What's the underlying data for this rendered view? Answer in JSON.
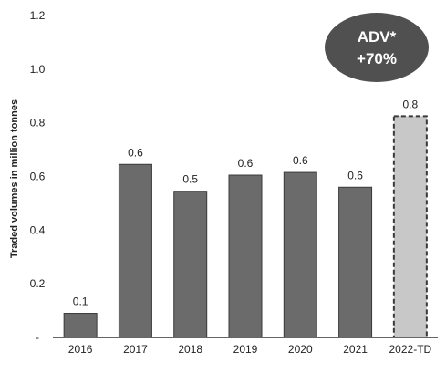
{
  "chart_data": {
    "type": "bar",
    "title": "",
    "xlabel": "",
    "ylabel": "Traded volumes in million tonnes",
    "ylim": [
      0,
      1.2
    ],
    "y_ticks": [
      "-",
      "0.2",
      "0.4",
      "0.6",
      "0.8",
      "1.0",
      "1.2"
    ],
    "grid": false,
    "categories": [
      "2016",
      "2017",
      "2018",
      "2019",
      "2020",
      "2021",
      "2022-TD"
    ],
    "values": [
      0.09,
      0.645,
      0.545,
      0.605,
      0.615,
      0.56,
      0.825
    ],
    "data_labels": [
      "0.1",
      "0.6",
      "0.5",
      "0.6",
      "0.6",
      "0.6",
      "0.8"
    ],
    "bar_styles": [
      "solid",
      "solid",
      "solid",
      "solid",
      "solid",
      "solid",
      "dashed"
    ],
    "annotation": {
      "line1": "ADV*",
      "line2": "+70%"
    },
    "colors": {
      "bar": "#6b6b6b",
      "bar_outline": "#3a3a3a",
      "highlight_bar": "#c8c8c8",
      "badge": "#505050",
      "axis": "#666666"
    }
  }
}
